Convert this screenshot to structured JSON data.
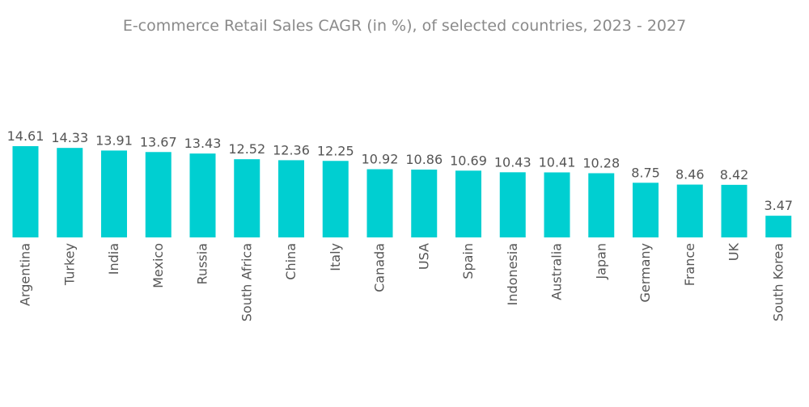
{
  "colors": {
    "bar": "#00cfd1",
    "text": "#555555",
    "title": "#8a8a8a"
  },
  "chart_data": {
    "type": "bar",
    "title": "E-commerce Retail Sales CAGR (in %), of selected countries, 2023 - 2027",
    "xlabel": "",
    "ylabel": "",
    "categories": [
      "Argentina",
      "Turkey",
      "India",
      "Mexico",
      "Russia",
      "South Africa",
      "China",
      "Italy",
      "Canada",
      "USA",
      "Spain",
      "Indonesia",
      "Australia",
      "Japan",
      "Germany",
      "France",
      "UK",
      "South Korea"
    ],
    "values": [
      14.61,
      14.33,
      13.91,
      13.67,
      13.43,
      12.52,
      12.36,
      12.25,
      10.92,
      10.86,
      10.69,
      10.43,
      10.41,
      10.28,
      8.75,
      8.46,
      8.42,
      3.47
    ],
    "ylim": [
      0,
      14.61
    ],
    "grid": false,
    "legend": "none",
    "data_labels": true
  }
}
